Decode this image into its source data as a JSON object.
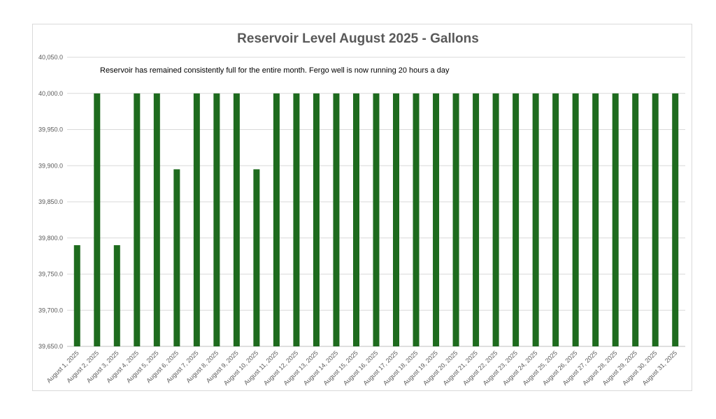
{
  "chart_data": {
    "type": "bar",
    "title": "Reservoir Level August 2025 - Gallons",
    "annotation": "Reservoir has remained consistently full for the entire month. Fergo well is now running 20 hours a day",
    "xlabel": "",
    "ylabel": "",
    "ylim": [
      39650,
      40050
    ],
    "yticks": [
      39650,
      39700,
      39750,
      39800,
      39850,
      39900,
      39950,
      40000,
      40050
    ],
    "ytick_labels": [
      "39,650.0",
      "39,700.0",
      "39,750.0",
      "39,800.0",
      "39,850.0",
      "39,900.0",
      "39,950.0",
      "40,000.0",
      "40,050.0"
    ],
    "grid": true,
    "legend": "none",
    "bar_color": "#1e6b1e",
    "categories": [
      "August 1, 2025",
      "August 2, 2025",
      "August 3, 2025",
      "August 4, 2025",
      "August 5, 2025",
      "August 6, 2025",
      "August 7, 2025",
      "August 8, 2025",
      "August 9, 2025",
      "August 10, 2025",
      "August 11, 2025",
      "August 12, 2025",
      "August 13, 2025",
      "August 14, 2025",
      "August 15, 2025",
      "August 16, 2025",
      "August 17, 2025",
      "August 18, 2025",
      "August 19, 2025",
      "August 20, 2025",
      "August 21, 2025",
      "August 22, 2025",
      "August 23, 2025",
      "August 24, 2025",
      "August 25, 2025",
      "August 26, 2025",
      "August 27, 2025",
      "August 28, 2025",
      "August 29, 2025",
      "August 30, 2025",
      "August 31, 2025"
    ],
    "values": [
      39790,
      40000,
      39790,
      40000,
      40000,
      39895,
      40000,
      40000,
      40000,
      39895,
      40000,
      40000,
      40000,
      40000,
      40000,
      40000,
      40000,
      40000,
      40000,
      40000,
      40000,
      40000,
      40000,
      40000,
      40000,
      40000,
      40000,
      40000,
      40000,
      40000,
      40000
    ]
  }
}
